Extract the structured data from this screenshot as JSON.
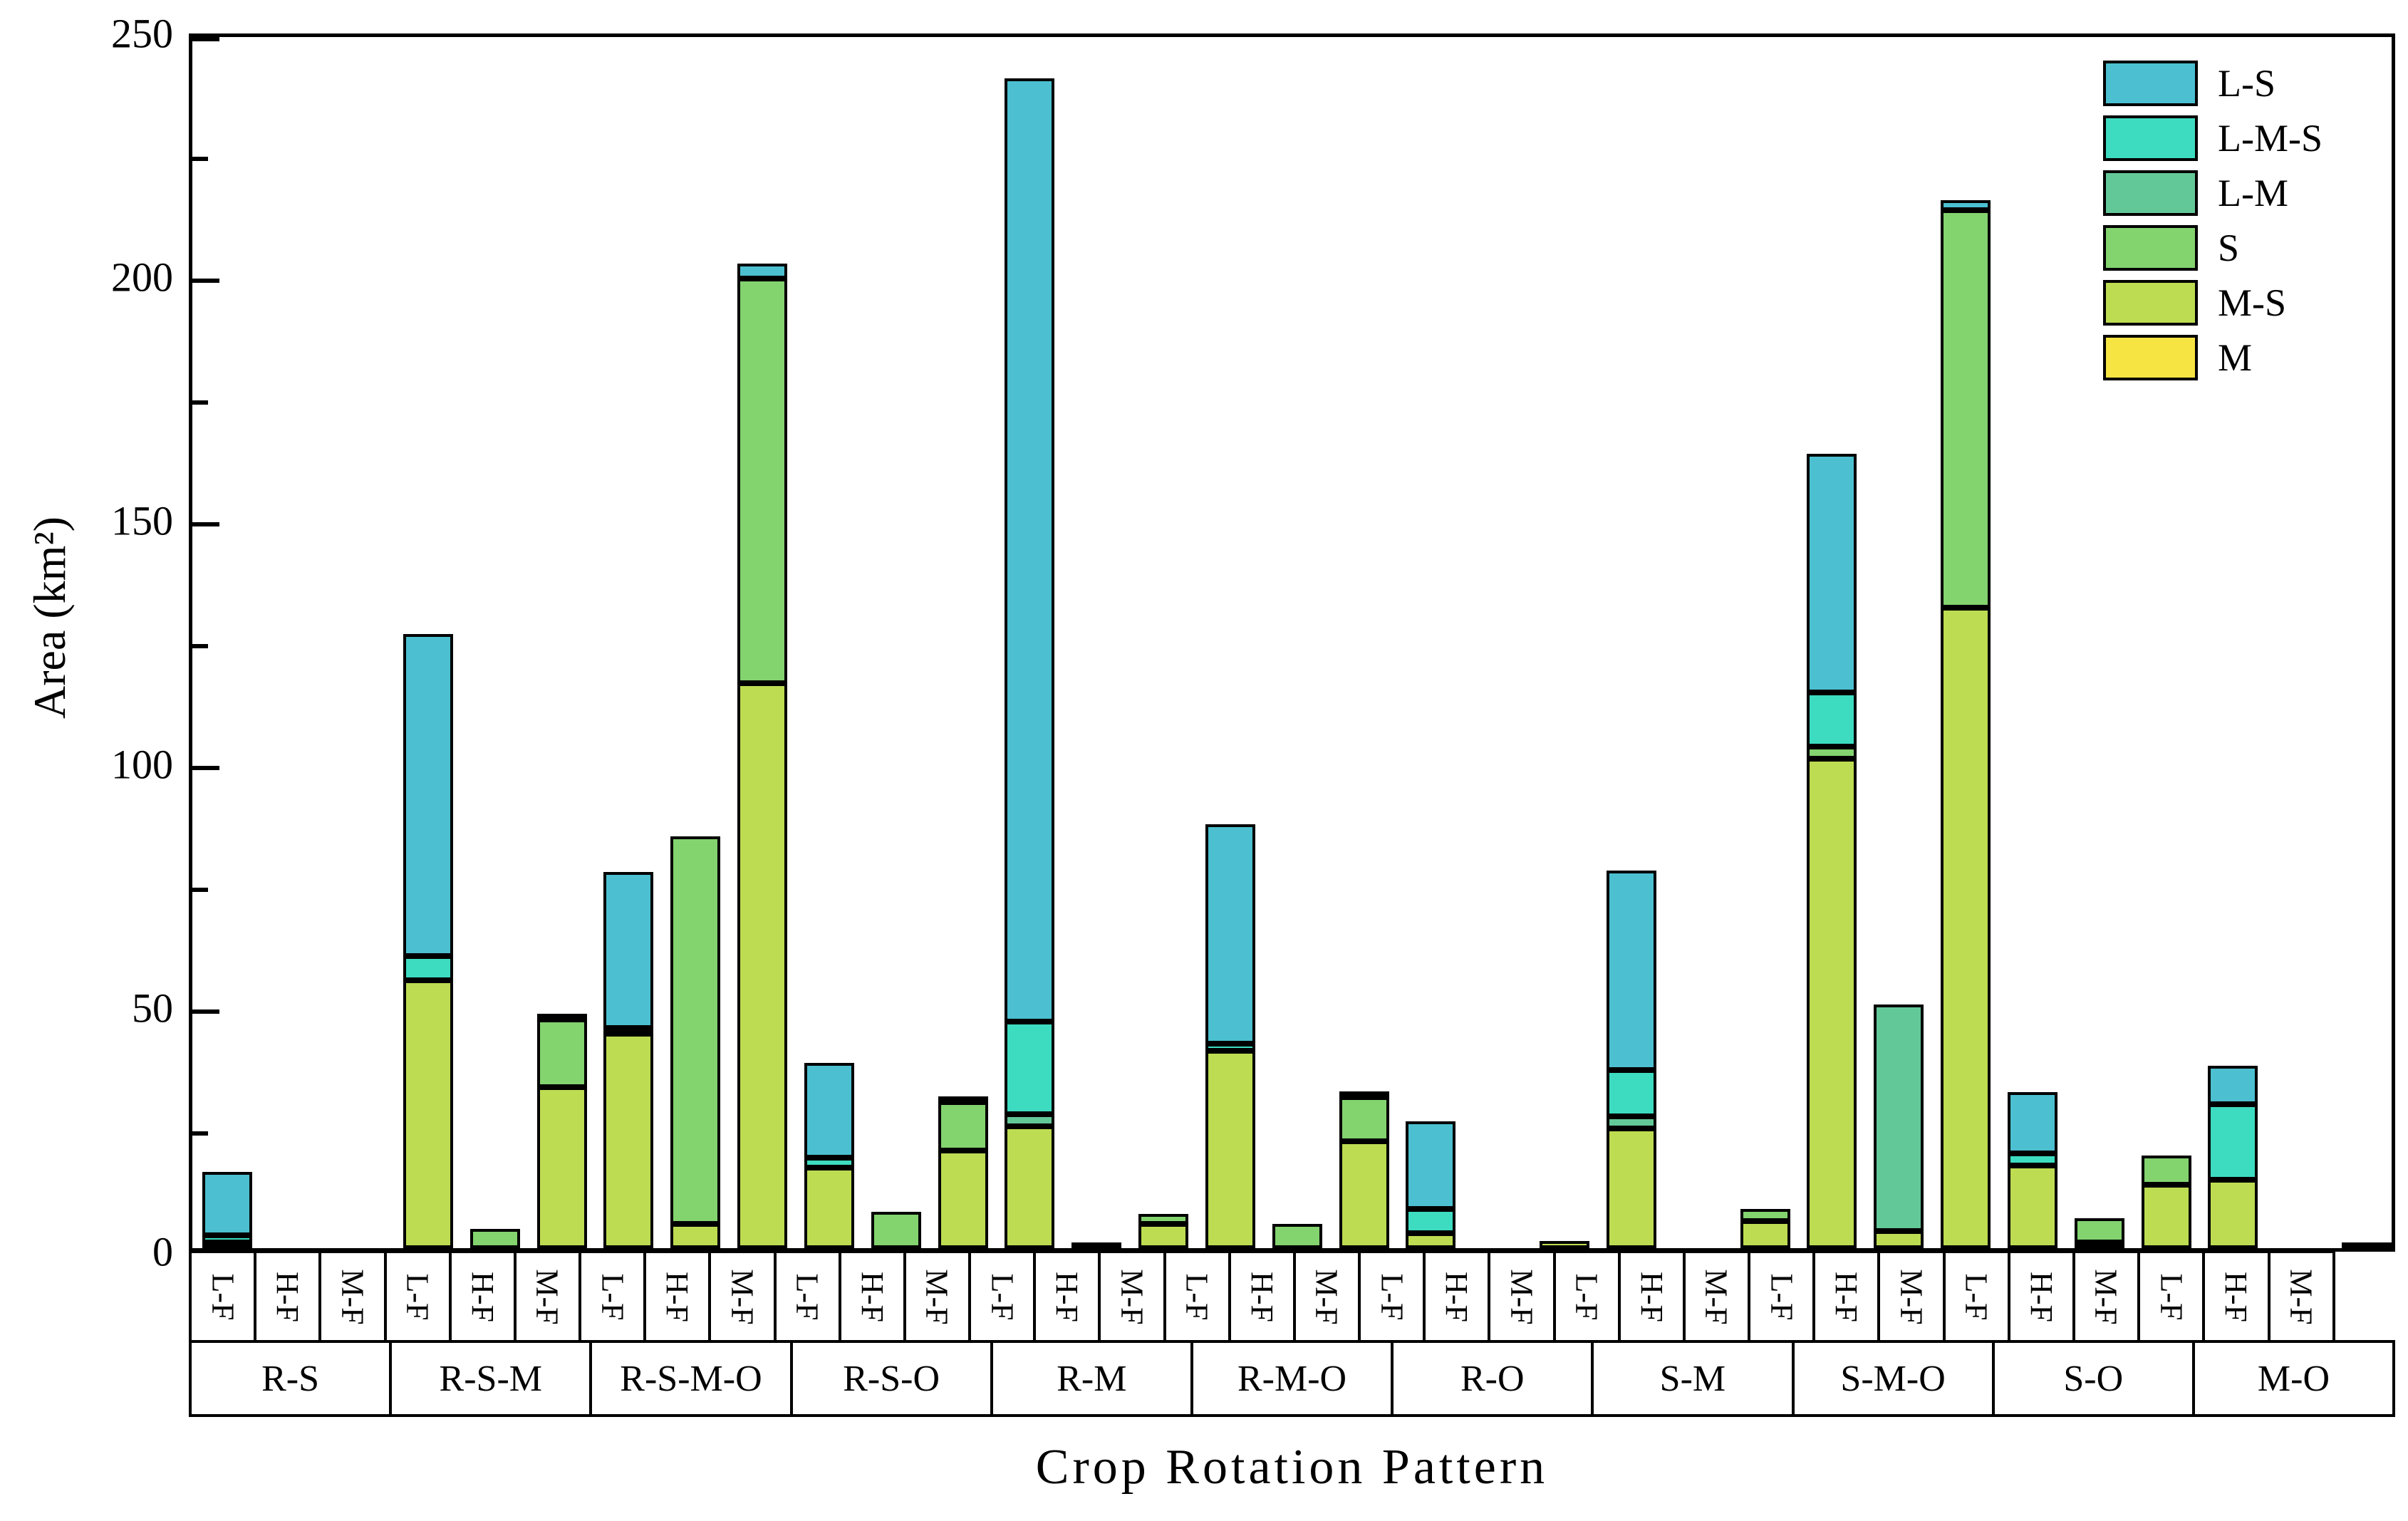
{
  "chart_data": {
    "type": "bar",
    "stacked": true,
    "title": "",
    "xlabel": "Crop Rotation Pattern",
    "ylabel": "Area (km²)",
    "ylim": [
      0,
      250
    ],
    "yticks": [
      0,
      50,
      100,
      150,
      200,
      250
    ],
    "minor_tick_step": 25,
    "grid": false,
    "legend_position": "top-right",
    "legend": [
      {
        "name": "L-S",
        "color": "#4CC0D0"
      },
      {
        "name": "L-M-S",
        "color": "#3DDCC1"
      },
      {
        "name": "L-M",
        "color": "#63C898"
      },
      {
        "name": "S",
        "color": "#83D36F"
      },
      {
        "name": "M-S",
        "color": "#BDDC52"
      },
      {
        "name": "M",
        "color": "#F5E442"
      }
    ],
    "stack_order_bottom_to_top": [
      "M",
      "M-S",
      "S",
      "L-M",
      "L-M-S",
      "L-S"
    ],
    "bar_labels": [
      "L-F",
      "H-F",
      "M-F"
    ],
    "groups": [
      {
        "label": "R-S",
        "bars": [
          {
            "label": "L-F",
            "total": 15.5,
            "segments": {
              "M-S": 1,
              "L-M-S": 1.5,
              "L-S": 13
            }
          },
          {
            "label": "H-F",
            "total": 0,
            "segments": {}
          },
          {
            "label": "M-F",
            "total": 0,
            "segments": {}
          }
        ]
      },
      {
        "label": "R-S-M",
        "bars": [
          {
            "label": "L-F",
            "total": 126,
            "segments": {
              "M-S": 55,
              "L-M-S": 5,
              "L-S": 66
            }
          },
          {
            "label": "H-F",
            "total": 4,
            "segments": {
              "S": 4
            }
          },
          {
            "label": "M-F",
            "total": 48,
            "segments": {
              "M-S": 33,
              "S": 14,
              "L-S": 1
            }
          }
        ]
      },
      {
        "label": "R-S-M-O",
        "bars": [
          {
            "label": "L-F",
            "total": 77,
            "segments": {
              "M-S": 44,
              "S": 1,
              "L-S": 32
            }
          },
          {
            "label": "H-F",
            "total": 84.5,
            "segments": {
              "M-S": 5,
              "S": 79.5
            }
          },
          {
            "label": "M-F",
            "total": 202,
            "segments": {
              "M-S": 116,
              "S": 83,
              "L-S": 3
            }
          }
        ]
      },
      {
        "label": "R-S-O",
        "bars": [
          {
            "label": "L-F",
            "total": 38,
            "segments": {
              "M-S": 16.5,
              "L-M-S": 2,
              "L-S": 19.5
            }
          },
          {
            "label": "H-F",
            "total": 7.5,
            "segments": {
              "S": 7.5
            }
          },
          {
            "label": "M-F",
            "total": 30.5,
            "segments": {
              "M-S": 20,
              "S": 10,
              "L-S": 0.5
            }
          }
        ]
      },
      {
        "label": "R-M",
        "bars": [
          {
            "label": "L-F",
            "total": 240,
            "segments": {
              "M-S": 25,
              "L-M": 2.5,
              "L-M-S": 19,
              "L-S": 193.5
            }
          },
          {
            "label": "H-F",
            "total": 1,
            "segments": {
              "M-S": 1
            }
          },
          {
            "label": "M-F",
            "total": 7,
            "segments": {
              "M-S": 5,
              "S": 2
            }
          }
        ]
      },
      {
        "label": "R-M-O",
        "bars": [
          {
            "label": "L-F",
            "total": 87,
            "segments": {
              "M-S": 40.5,
              "L-M-S": 1.5,
              "L-S": 45
            }
          },
          {
            "label": "H-F",
            "total": 5,
            "segments": {
              "S": 5
            }
          },
          {
            "label": "M-F",
            "total": 32,
            "segments": {
              "M-S": 22,
              "S": 9,
              "L-S": 1
            }
          }
        ]
      },
      {
        "label": "R-O",
        "bars": [
          {
            "label": "L-F",
            "total": 26,
            "segments": {
              "M-S": 3,
              "L-M-S": 5,
              "L-S": 18
            }
          },
          {
            "label": "H-F",
            "total": 0,
            "segments": {}
          },
          {
            "label": "M-F",
            "total": 1.5,
            "segments": {
              "M-S": 1.5
            }
          }
        ]
      },
      {
        "label": "S-M",
        "bars": [
          {
            "label": "L-F",
            "total": 77.5,
            "segments": {
              "M-S": 24.5,
              "L-M": 2.5,
              "L-M-S": 9.5,
              "L-S": 41
            }
          },
          {
            "label": "H-F",
            "total": 0,
            "segments": {}
          },
          {
            "label": "M-F",
            "total": 8,
            "segments": {
              "M-S": 5.5,
              "S": 2.5
            }
          }
        ]
      },
      {
        "label": "S-M-O",
        "bars": [
          {
            "label": "L-F",
            "total": 163,
            "segments": {
              "M-S": 100.5,
              "S": 2.5,
              "L-M-S": 11,
              "L-S": 49
            }
          },
          {
            "label": "H-F",
            "total": 50,
            "segments": {
              "M-S": 3.5,
              "L-M": 46.5
            }
          },
          {
            "label": "M-F",
            "total": 215,
            "segments": {
              "M-S": 131.5,
              "S": 81.5,
              "L-S": 2
            }
          }
        ]
      },
      {
        "label": "S-O",
        "bars": [
          {
            "label": "L-F",
            "total": 32,
            "segments": {
              "M-S": 17,
              "L-M-S": 2.5,
              "L-S": 12.5
            }
          },
          {
            "label": "H-F",
            "total": 5.5,
            "segments": {
              "M-S": 0.5,
              "S": 5
            }
          },
          {
            "label": "M-F",
            "total": 19,
            "segments": {
              "M-S": 13,
              "S": 6
            }
          }
        ]
      },
      {
        "label": "M-O",
        "bars": [
          {
            "label": "L-F",
            "total": 37.5,
            "segments": {
              "M-S": 14,
              "L-M-S": 15.5,
              "L-S": 8
            }
          },
          {
            "label": "H-F",
            "total": 0,
            "segments": {}
          },
          {
            "label": "M-F",
            "total": 1,
            "segments": {
              "M-S": 1
            }
          }
        ]
      }
    ]
  },
  "layout_colors": {
    "background": "#ffffff",
    "axis": "#000000",
    "text": "#000000"
  }
}
